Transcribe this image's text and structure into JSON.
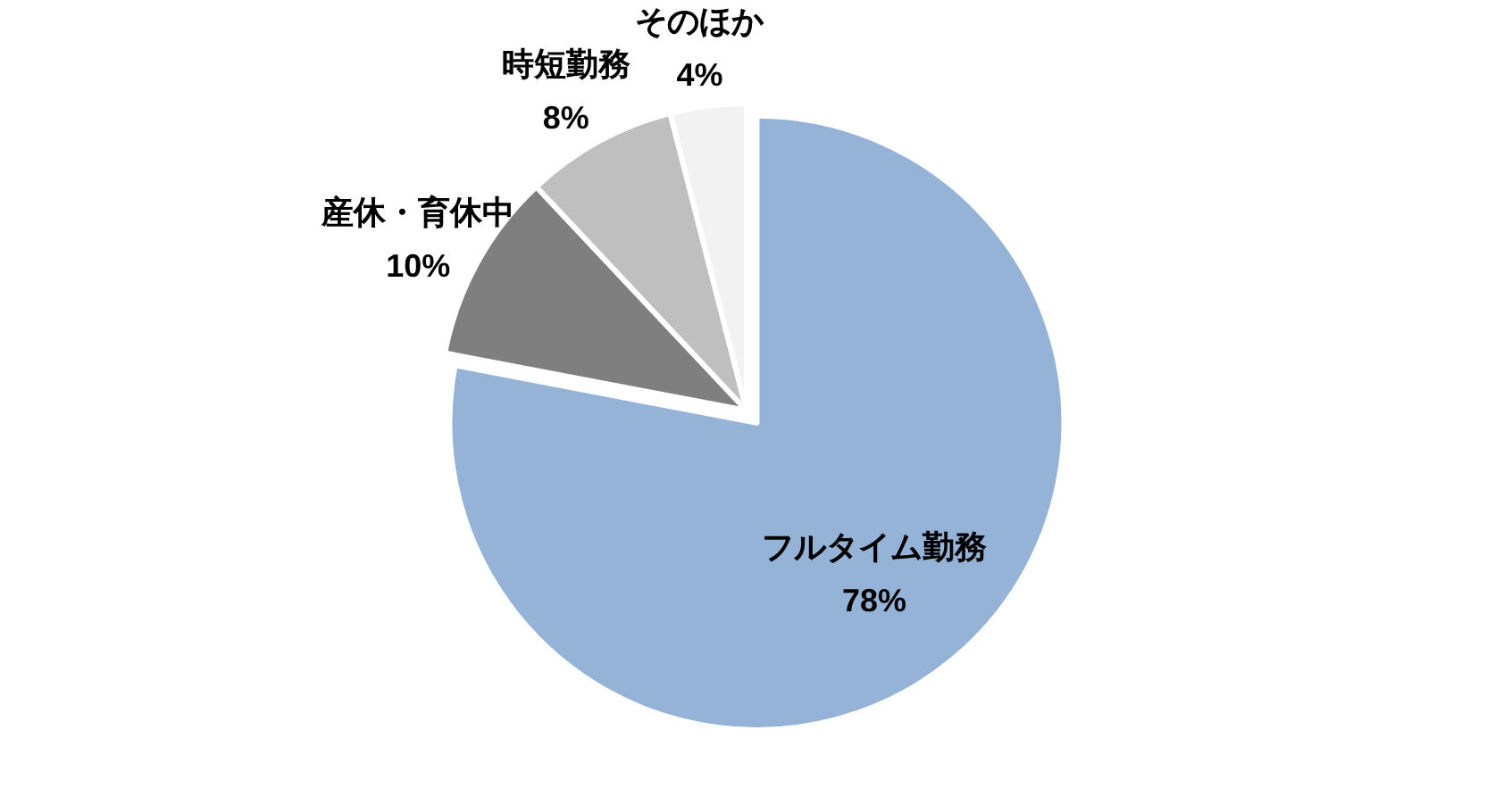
{
  "chart_data": {
    "type": "pie",
    "categories": [
      "フルタイム勤務",
      "産休・育休中",
      "時短勤務",
      "そのほか"
    ],
    "values": [
      78,
      10,
      8,
      4
    ],
    "colors": [
      "#95b3d7",
      "#7f7f7f",
      "#bfbfbf",
      "#f2f2f2"
    ],
    "value_labels": [
      "78%",
      "10%",
      "8%",
      "4%"
    ]
  }
}
